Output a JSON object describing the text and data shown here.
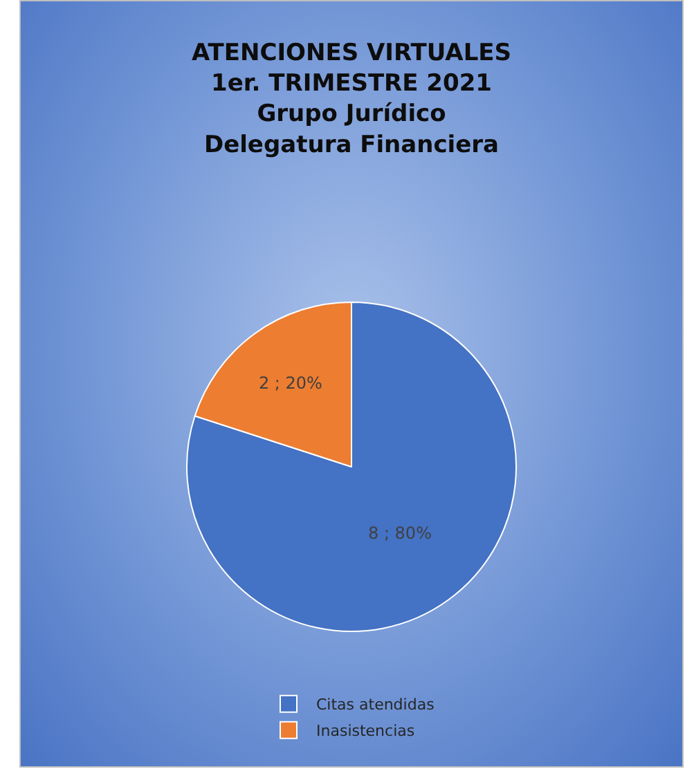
{
  "chart_data": {
    "type": "pie",
    "title": "ATENCIONES VIRTUALES\n1er. TRIMESTRE 2021\nGrupo Jurídico\nDelegatura Financiera",
    "categories": [
      "Citas atendidas",
      "Inasistencias"
    ],
    "values": [
      8,
      2
    ],
    "colors": [
      "#4472c4",
      "#ed7d31"
    ],
    "value_labels": [
      "8 ; 80%",
      "2 ; 20%"
    ],
    "legend": "bottom"
  }
}
